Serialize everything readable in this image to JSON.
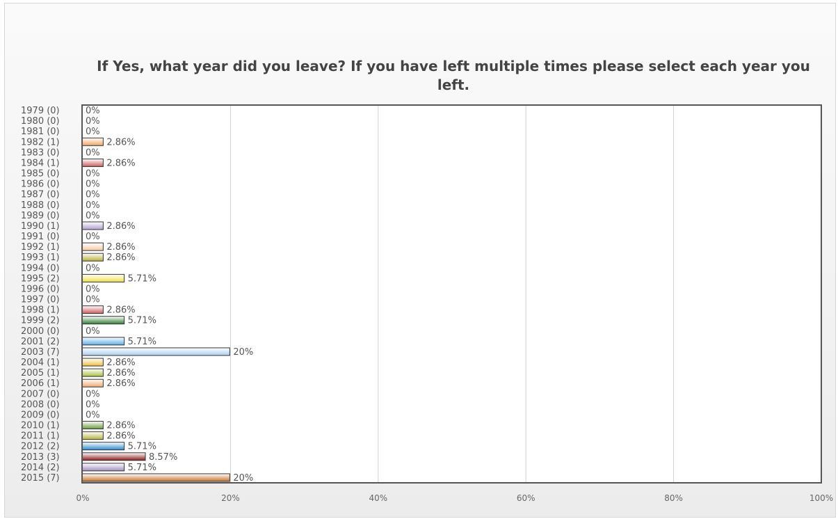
{
  "chart_data": {
    "type": "bar",
    "orientation": "horizontal",
    "title": "If Yes, what year did you leave? If you have left multiple times please select each year you left.",
    "categories": [
      "1979 (0)",
      "1980 (0)",
      "1981 (0)",
      "1982 (1)",
      "1983 (0)",
      "1984 (1)",
      "1985 (0)",
      "1986 (0)",
      "1987 (0)",
      "1988 (0)",
      "1989 (0)",
      "1990 (1)",
      "1991 (0)",
      "1992 (1)",
      "1993 (1)",
      "1994 (0)",
      "1995 (2)",
      "1996 (0)",
      "1997 (0)",
      "1998 (1)",
      "1999 (2)",
      "2000 (0)",
      "2001 (2)",
      "2003 (7)",
      "2004 (1)",
      "2005 (1)",
      "2006 (1)",
      "2007 (0)",
      "2008 (0)",
      "2009 (0)",
      "2010 (1)",
      "2011 (1)",
      "2012 (2)",
      "2013 (3)",
      "2014 (2)",
      "2015 (7)"
    ],
    "values": [
      0,
      0,
      0,
      2.86,
      0,
      2.86,
      0,
      0,
      0,
      0,
      0,
      2.86,
      0,
      2.86,
      2.86,
      0,
      5.71,
      0,
      0,
      2.86,
      5.71,
      0,
      5.71,
      20,
      2.86,
      2.86,
      2.86,
      0,
      0,
      0,
      2.86,
      2.86,
      5.71,
      8.57,
      5.71,
      20
    ],
    "value_labels": [
      "0%",
      "0%",
      "0%",
      "2.86%",
      "0%",
      "2.86%",
      "0%",
      "0%",
      "0%",
      "0%",
      "0%",
      "2.86%",
      "0%",
      "2.86%",
      "2.86%",
      "0%",
      "5.71%",
      "0%",
      "0%",
      "2.86%",
      "5.71%",
      "0%",
      "5.71%",
      "20%",
      "2.86%",
      "2.86%",
      "2.86%",
      "0%",
      "0%",
      "0%",
      "2.86%",
      "2.86%",
      "5.71%",
      "8.57%",
      "5.71%",
      "20%"
    ],
    "colors": [
      "#c0c0c0",
      "#c0c0c0",
      "#c0c0c0",
      "#f4a460",
      "#c0c0c0",
      "#cd5c5c",
      "#c0c0c0",
      "#c0c0c0",
      "#c0c0c0",
      "#c0c0c0",
      "#c0c0c0",
      "#b0a0d0",
      "#c0c0c0",
      "#f5c9a5",
      "#b5b03a",
      "#c0c0c0",
      "#f0e040",
      "#c0c0c0",
      "#c0c0c0",
      "#cd5c5c",
      "#2e7d32",
      "#c0c0c0",
      "#5aaee8",
      "#a8d0f0",
      "#f0c040",
      "#a8c040",
      "#f0a870",
      "#c0c0c0",
      "#c0c0c0",
      "#c0c0c0",
      "#6a9a40",
      "#b5b540",
      "#2a88c8",
      "#8b1a1a",
      "#a090c0",
      "#c8742c"
    ],
    "xlim": [
      0,
      100
    ],
    "xticks": [
      "0%",
      "20%",
      "40%",
      "60%",
      "80%",
      "100%"
    ],
    "grid": true
  }
}
